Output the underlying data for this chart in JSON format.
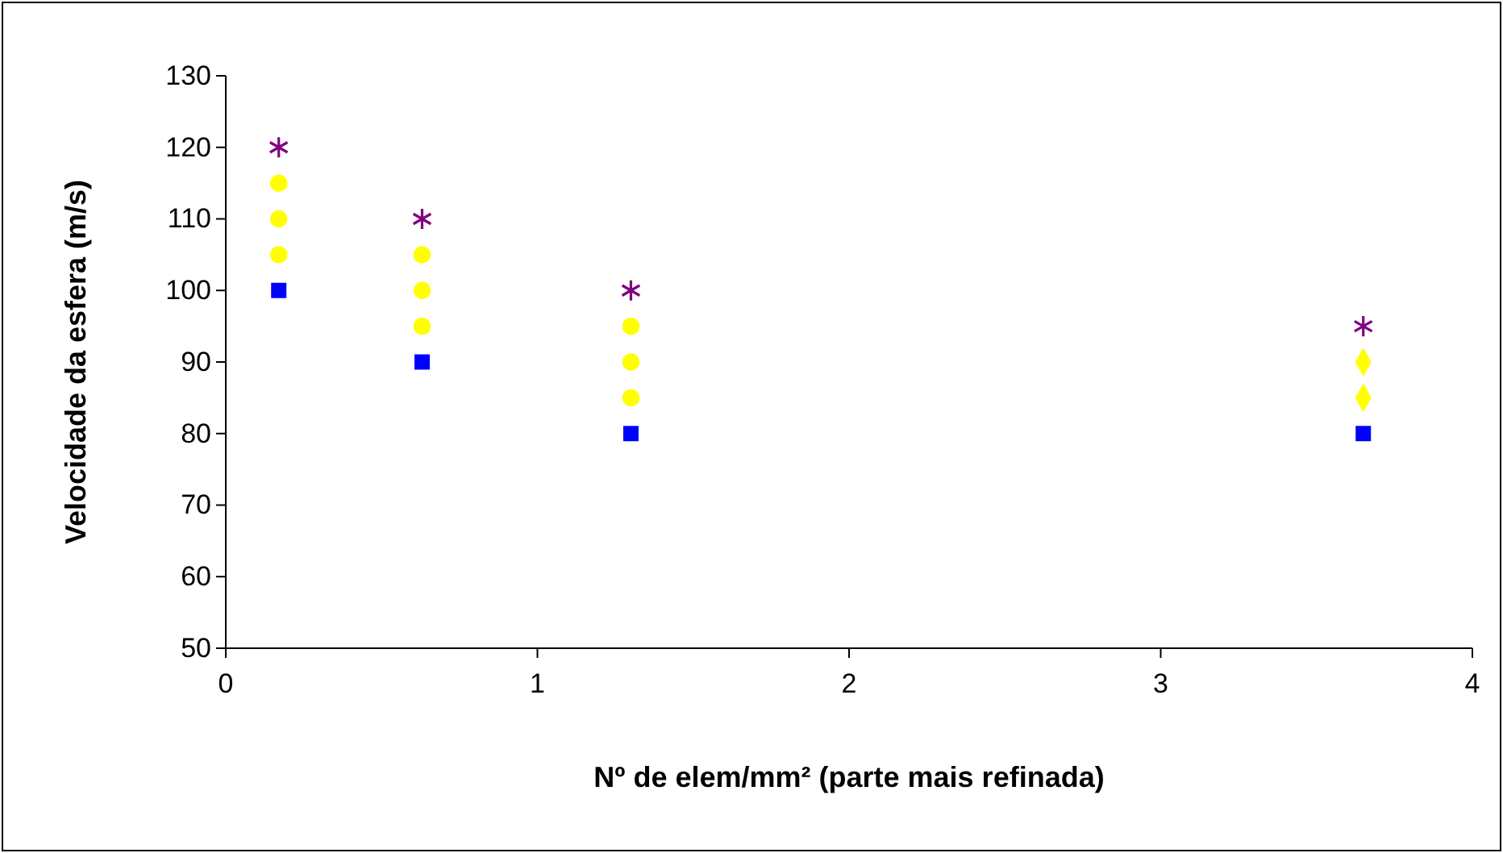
{
  "chart_data": {
    "type": "scatter",
    "xlabel": "Nº de elem/mm² (parte mais refinada)",
    "ylabel": "Velocidade da esfera (m/s)",
    "xlim": [
      0,
      4
    ],
    "xticks": [
      0,
      1,
      2,
      3,
      4
    ],
    "ylim": [
      50,
      130
    ],
    "yticks": [
      50,
      60,
      70,
      80,
      90,
      100,
      110,
      120,
      130
    ],
    "grid": false,
    "series": [
      {
        "color": "#0000ff",
        "marker": "square",
        "x": [
          0.17,
          0.63,
          1.3,
          3.65
        ],
        "values": [
          100,
          90,
          80,
          80
        ]
      },
      {
        "color": "#ffff00",
        "marker": "circle",
        "x": [
          0.17,
          0.17,
          0.17,
          0.63,
          0.63,
          0.63,
          1.3,
          1.3,
          1.3
        ],
        "values": [
          105,
          110,
          115,
          95,
          100,
          105,
          85,
          90,
          95
        ]
      },
      {
        "color": "#ffff00",
        "marker": "diamond",
        "x": [
          3.65,
          3.65
        ],
        "values": [
          85,
          90
        ]
      },
      {
        "color": "#800080",
        "marker": "cross",
        "x": [
          0.17,
          0.63,
          1.3,
          3.65
        ],
        "values": [
          120,
          110,
          100,
          95
        ]
      }
    ]
  }
}
